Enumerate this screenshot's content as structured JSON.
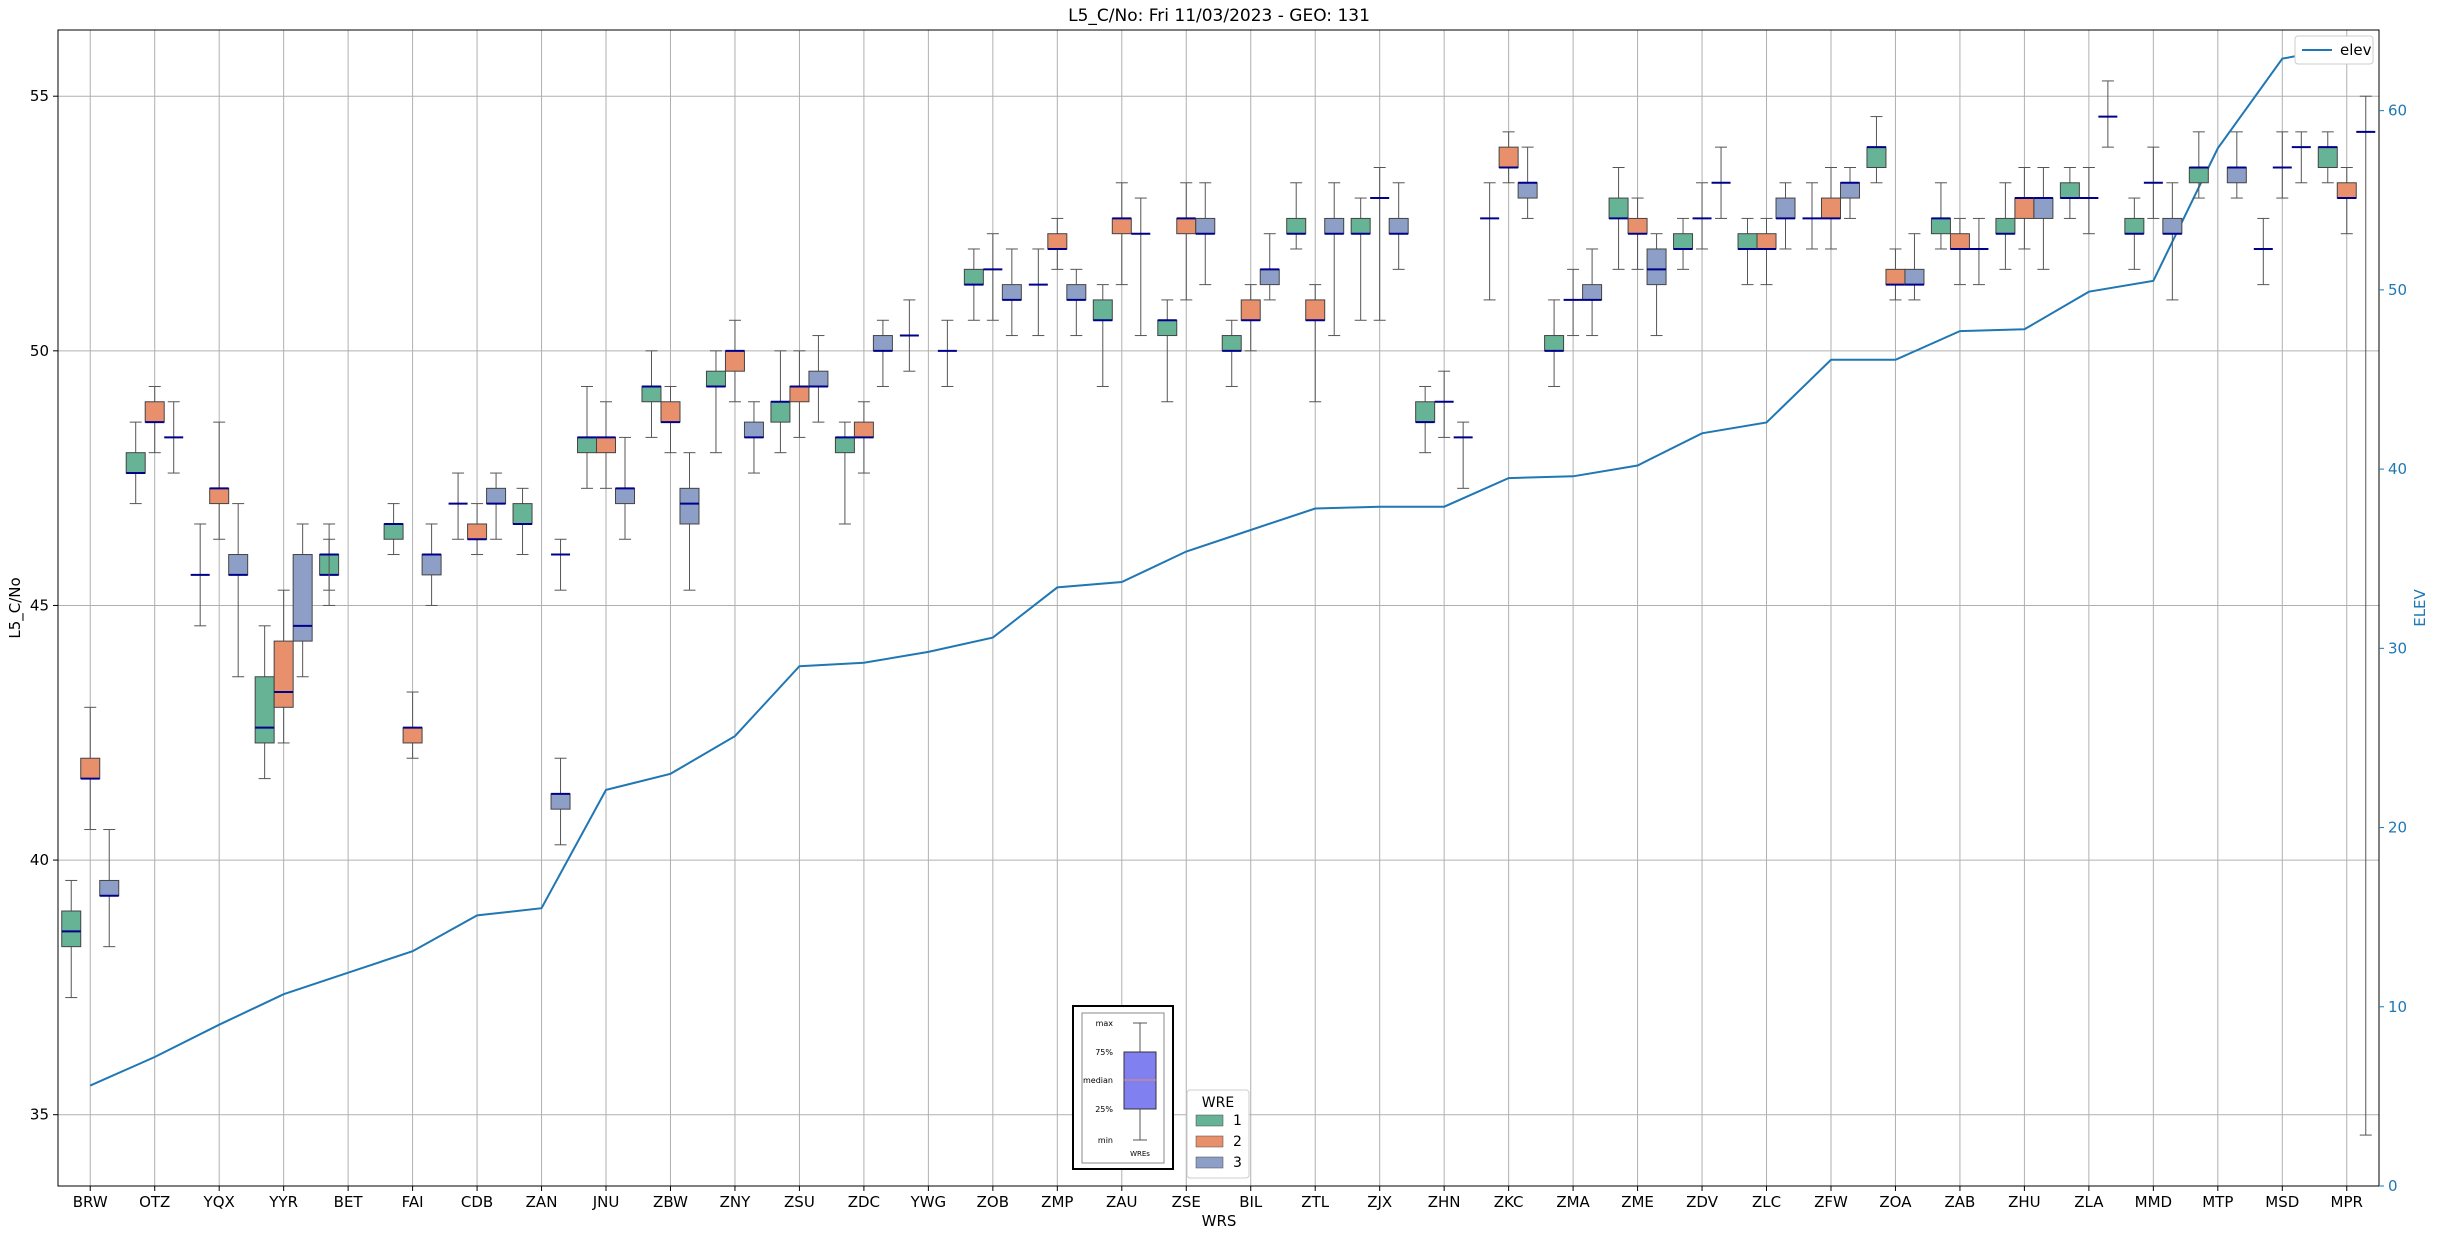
{
  "chart_data": {
    "type": "box",
    "title": "L5_C/No: Fri 11/03/2023 - GEO: 131",
    "xlabel": "WRS",
    "ylabel": "L5_C/No",
    "y2label": "ELEV",
    "ylim": [
      33.6,
      56.3
    ],
    "y2lim": [
      0,
      64.5
    ],
    "yticks": [
      35,
      40,
      45,
      50,
      55
    ],
    "y2ticks": [
      0,
      10,
      20,
      30,
      40,
      50,
      60
    ],
    "grid": true,
    "categories": [
      "BRW",
      "OTZ",
      "YQX",
      "YYR",
      "BET",
      "FAI",
      "CDB",
      "ZAN",
      "JNU",
      "ZBW",
      "ZNY",
      "ZSU",
      "ZDC",
      "YWG",
      "ZOB",
      "ZMP",
      "ZAU",
      "ZSE",
      "BIL",
      "ZTL",
      "ZJX",
      "ZHN",
      "ZKC",
      "ZMA",
      "ZME",
      "ZDV",
      "ZLC",
      "ZFW",
      "ZOA",
      "ZAB",
      "ZHU",
      "ZLA",
      "MMD",
      "MTP",
      "MSD",
      "MPR"
    ],
    "legend": {
      "title": "WRE",
      "entries": [
        "1",
        "2",
        "3"
      ],
      "colors": [
        "#66b395",
        "#e8906c",
        "#8d9fc6"
      ],
      "placement": "lower-center"
    },
    "legend2": {
      "entries": [
        "elev"
      ],
      "color": "#1f77b4",
      "placement": "top-right"
    },
    "key_box": {
      "labels": [
        "max",
        "75%",
        "median",
        "25%",
        "min"
      ],
      "xlabel": "WREs"
    },
    "median_color": "#00008b",
    "elev_series": {
      "name": "elev",
      "color": "#1f77b4",
      "values": [
        5.6,
        7.2,
        9.0,
        10.7,
        11.9,
        13.1,
        15.1,
        15.5,
        22.1,
        23.0,
        25.1,
        29.0,
        29.2,
        29.8,
        30.6,
        33.4,
        33.7,
        35.4,
        36.6,
        37.8,
        37.9,
        37.9,
        39.5,
        39.6,
        40.2,
        42.0,
        42.6,
        46.1,
        46.1,
        47.7,
        47.8,
        49.9,
        50.5,
        57.9,
        62.9,
        63.6
      ]
    },
    "series": [
      {
        "name": "1",
        "boxes": [
          {
            "cat": 0,
            "min": 37.3,
            "q1": 38.3,
            "median": 38.6,
            "q3": 39.0,
            "max": 39.6
          },
          {
            "cat": 1,
            "min": 47.0,
            "q1": 47.6,
            "median": 47.6,
            "q3": 48.0,
            "max": 48.6
          },
          {
            "cat": 3,
            "min": 41.6,
            "q1": 42.3,
            "median": 42.6,
            "q3": 43.6,
            "max": 44.6
          },
          {
            "cat": 4,
            "min": 45.0,
            "q1": 45.6,
            "median": 45.6,
            "q3": 46.0,
            "max": 46.3
          },
          {
            "cat": 5,
            "min": 46.0,
            "q1": 46.3,
            "median": 46.6,
            "q3": 46.6,
            "max": 47.0
          },
          {
            "cat": 7,
            "min": 46.0,
            "q1": 46.6,
            "median": 46.6,
            "q3": 47.0,
            "max": 47.3
          },
          {
            "cat": 8,
            "min": 47.3,
            "q1": 48.0,
            "median": 48.3,
            "q3": 48.3,
            "max": 49.3
          },
          {
            "cat": 9,
            "min": 48.3,
            "q1": 49.0,
            "median": 49.3,
            "q3": 49.3,
            "max": 50.0
          },
          {
            "cat": 10,
            "min": 48.0,
            "q1": 49.3,
            "median": 49.3,
            "q3": 49.6,
            "max": 50.0
          },
          {
            "cat": 11,
            "min": 48.0,
            "q1": 48.6,
            "median": 49.0,
            "q3": 49.0,
            "max": 50.0
          },
          {
            "cat": 12,
            "min": 46.6,
            "q1": 48.0,
            "median": 48.3,
            "q3": 48.3,
            "max": 48.6
          },
          {
            "cat": 14,
            "min": 50.6,
            "q1": 51.3,
            "median": 51.3,
            "q3": 51.6,
            "max": 52.0
          },
          {
            "cat": 16,
            "min": 49.3,
            "q1": 50.6,
            "median": 50.6,
            "q3": 51.0,
            "max": 51.3
          },
          {
            "cat": 17,
            "min": 49.0,
            "q1": 50.3,
            "median": 50.6,
            "q3": 50.6,
            "max": 51.0
          },
          {
            "cat": 18,
            "min": 49.3,
            "q1": 50.0,
            "median": 50.0,
            "q3": 50.3,
            "max": 50.6
          },
          {
            "cat": 19,
            "min": 52.0,
            "q1": 52.3,
            "median": 52.3,
            "q3": 52.6,
            "max": 53.3
          },
          {
            "cat": 20,
            "min": 50.6,
            "q1": 52.3,
            "median": 52.3,
            "q3": 52.6,
            "max": 53.0
          },
          {
            "cat": 21,
            "min": 48.0,
            "q1": 48.6,
            "median": 48.6,
            "q3": 49.0,
            "max": 49.3
          },
          {
            "cat": 23,
            "min": 49.3,
            "q1": 50.0,
            "median": 50.0,
            "q3": 50.3,
            "max": 51.0
          },
          {
            "cat": 24,
            "min": 51.6,
            "q1": 52.6,
            "median": 52.6,
            "q3": 53.0,
            "max": 53.6
          },
          {
            "cat": 25,
            "min": 51.6,
            "q1": 52.0,
            "median": 52.0,
            "q3": 52.3,
            "max": 52.6
          },
          {
            "cat": 26,
            "min": 51.3,
            "q1": 52.0,
            "median": 52.0,
            "q3": 52.3,
            "max": 52.6
          },
          {
            "cat": 28,
            "min": 53.3,
            "q1": 53.6,
            "median": 54.0,
            "q3": 54.0,
            "max": 54.6
          },
          {
            "cat": 29,
            "min": 52.0,
            "q1": 52.3,
            "median": 52.6,
            "q3": 52.6,
            "max": 53.3
          },
          {
            "cat": 30,
            "min": 51.6,
            "q1": 52.3,
            "median": 52.3,
            "q3": 52.6,
            "max": 53.3
          },
          {
            "cat": 31,
            "min": 52.6,
            "q1": 53.0,
            "median": 53.0,
            "q3": 53.3,
            "max": 53.6
          },
          {
            "cat": 32,
            "min": 51.6,
            "q1": 52.3,
            "median": 52.3,
            "q3": 52.6,
            "max": 53.0
          },
          {
            "cat": 33,
            "min": 53.0,
            "q1": 53.3,
            "median": 53.6,
            "q3": 53.6,
            "max": 54.3
          },
          {
            "cat": 35,
            "min": 53.3,
            "q1": 53.6,
            "median": 54.0,
            "q3": 54.0,
            "max": 54.3
          }
        ]
      },
      {
        "name": "2",
        "boxes": [
          {
            "cat": 0,
            "min": 40.6,
            "q1": 41.6,
            "median": 41.6,
            "q3": 42.0,
            "max": 43.0
          },
          {
            "cat": 1,
            "min": 48.0,
            "q1": 48.6,
            "median": 48.6,
            "q3": 49.0,
            "max": 49.3
          },
          {
            "cat": 2,
            "min": 46.3,
            "q1": 47.0,
            "median": 47.3,
            "q3": 47.3,
            "max": 48.6
          },
          {
            "cat": 3,
            "min": 42.3,
            "q1": 43.0,
            "median": 43.3,
            "q3": 44.3,
            "max": 45.3
          },
          {
            "cat": 5,
            "min": 42.0,
            "q1": 42.3,
            "median": 42.6,
            "q3": 42.6,
            "max": 43.3
          },
          {
            "cat": 6,
            "min": 46.0,
            "q1": 46.3,
            "median": 46.3,
            "q3": 46.6,
            "max": 47.0
          },
          {
            "cat": 8,
            "min": 47.3,
            "q1": 48.0,
            "median": 48.3,
            "q3": 48.3,
            "max": 49.0
          },
          {
            "cat": 9,
            "min": 48.0,
            "q1": 48.6,
            "median": 48.6,
            "q3": 49.0,
            "max": 49.3
          },
          {
            "cat": 10,
            "min": 49.0,
            "q1": 49.6,
            "median": 50.0,
            "q3": 50.0,
            "max": 50.6
          },
          {
            "cat": 11,
            "min": 48.3,
            "q1": 49.0,
            "median": 49.3,
            "q3": 49.3,
            "max": 50.0
          },
          {
            "cat": 12,
            "min": 47.6,
            "q1": 48.3,
            "median": 48.3,
            "q3": 48.6,
            "max": 49.0
          },
          {
            "cat": 15,
            "min": 51.6,
            "q1": 52.0,
            "median": 52.0,
            "q3": 52.3,
            "max": 52.6
          },
          {
            "cat": 16,
            "min": 51.3,
            "q1": 52.3,
            "median": 52.6,
            "q3": 52.6,
            "max": 53.3
          },
          {
            "cat": 17,
            "min": 51.0,
            "q1": 52.3,
            "median": 52.6,
            "q3": 52.6,
            "max": 53.3
          },
          {
            "cat": 18,
            "min": 50.0,
            "q1": 50.6,
            "median": 50.6,
            "q3": 51.0,
            "max": 51.3
          },
          {
            "cat": 19,
            "min": 49.0,
            "q1": 50.6,
            "median": 50.6,
            "q3": 51.0,
            "max": 51.3
          },
          {
            "cat": 22,
            "min": 53.3,
            "q1": 53.6,
            "median": 53.6,
            "q3": 54.0,
            "max": 54.3
          },
          {
            "cat": 24,
            "min": 51.6,
            "q1": 52.3,
            "median": 52.3,
            "q3": 52.6,
            "max": 53.0
          },
          {
            "cat": 26,
            "min": 51.3,
            "q1": 52.0,
            "median": 52.0,
            "q3": 52.3,
            "max": 52.6
          },
          {
            "cat": 27,
            "min": 52.0,
            "q1": 52.6,
            "median": 52.6,
            "q3": 53.0,
            "max": 53.6
          },
          {
            "cat": 28,
            "min": 51.0,
            "q1": 51.3,
            "median": 51.3,
            "q3": 51.6,
            "max": 52.0
          },
          {
            "cat": 29,
            "min": 51.3,
            "q1": 52.0,
            "median": 52.0,
            "q3": 52.3,
            "max": 52.6
          },
          {
            "cat": 30,
            "min": 52.0,
            "q1": 52.6,
            "median": 53.0,
            "q3": 53.0,
            "max": 53.6
          },
          {
            "cat": 35,
            "min": 52.3,
            "q1": 53.0,
            "median": 53.0,
            "q3": 53.3,
            "max": 53.6
          }
        ]
      },
      {
        "name": "3",
        "boxes": [
          {
            "cat": 0,
            "min": 38.3,
            "q1": 39.3,
            "median": 39.3,
            "q3": 39.6,
            "max": 40.6
          },
          {
            "cat": 2,
            "min": 43.6,
            "q1": 45.6,
            "median": 45.6,
            "q3": 46.0,
            "max": 47.0
          },
          {
            "cat": 3,
            "min": 43.6,
            "q1": 44.3,
            "median": 44.6,
            "q3": 46.0,
            "max": 46.6
          },
          {
            "cat": 5,
            "min": 45.0,
            "q1": 45.6,
            "median": 46.0,
            "q3": 46.0,
            "max": 46.6
          },
          {
            "cat": 6,
            "min": 46.3,
            "q1": 47.0,
            "median": 47.0,
            "q3": 47.3,
            "max": 47.6
          },
          {
            "cat": 7,
            "min": 40.3,
            "q1": 41.0,
            "median": 41.3,
            "q3": 41.3,
            "max": 42.0
          },
          {
            "cat": 8,
            "min": 46.3,
            "q1": 47.0,
            "median": 47.3,
            "q3": 47.3,
            "max": 48.3
          },
          {
            "cat": 9,
            "min": 45.3,
            "q1": 46.6,
            "median": 47.0,
            "q3": 47.3,
            "max": 48.0
          },
          {
            "cat": 10,
            "min": 47.6,
            "q1": 48.3,
            "median": 48.3,
            "q3": 48.6,
            "max": 49.0
          },
          {
            "cat": 11,
            "min": 48.6,
            "q1": 49.3,
            "median": 49.3,
            "q3": 49.6,
            "max": 50.3
          },
          {
            "cat": 12,
            "min": 49.3,
            "q1": 50.0,
            "median": 50.0,
            "q3": 50.3,
            "max": 50.6
          },
          {
            "cat": 14,
            "min": 50.3,
            "q1": 51.0,
            "median": 51.0,
            "q3": 51.3,
            "max": 52.0
          },
          {
            "cat": 15,
            "min": 50.3,
            "q1": 51.0,
            "median": 51.0,
            "q3": 51.3,
            "max": 51.6
          },
          {
            "cat": 17,
            "min": 51.3,
            "q1": 52.3,
            "median": 52.3,
            "q3": 52.6,
            "max": 53.3
          },
          {
            "cat": 18,
            "min": 51.0,
            "q1": 51.3,
            "median": 51.6,
            "q3": 51.6,
            "max": 52.3
          },
          {
            "cat": 19,
            "min": 50.3,
            "q1": 52.3,
            "median": 52.3,
            "q3": 52.6,
            "max": 53.3
          },
          {
            "cat": 20,
            "min": 51.6,
            "q1": 52.3,
            "median": 52.3,
            "q3": 52.6,
            "max": 53.3
          },
          {
            "cat": 22,
            "min": 52.6,
            "q1": 53.0,
            "median": 53.3,
            "q3": 53.3,
            "max": 54.0
          },
          {
            "cat": 23,
            "min": 50.3,
            "q1": 51.0,
            "median": 51.0,
            "q3": 51.3,
            "max": 52.0
          },
          {
            "cat": 24,
            "min": 50.3,
            "q1": 51.3,
            "median": 51.6,
            "q3": 52.0,
            "max": 52.3
          },
          {
            "cat": 26,
            "min": 52.0,
            "q1": 52.6,
            "median": 52.6,
            "q3": 53.0,
            "max": 53.3
          },
          {
            "cat": 27,
            "min": 52.6,
            "q1": 53.0,
            "median": 53.3,
            "q3": 53.3,
            "max": 53.6
          },
          {
            "cat": 28,
            "min": 51.0,
            "q1": 51.3,
            "median": 51.3,
            "q3": 51.6,
            "max": 52.3
          },
          {
            "cat": 30,
            "min": 51.6,
            "q1": 52.6,
            "median": 53.0,
            "q3": 53.0,
            "max": 53.6
          },
          {
            "cat": 32,
            "min": 51.0,
            "q1": 52.3,
            "median": 52.3,
            "q3": 52.6,
            "max": 53.3
          },
          {
            "cat": 33,
            "min": 53.0,
            "q1": 53.3,
            "median": 53.6,
            "q3": 53.6,
            "max": 54.3
          }
        ]
      }
    ],
    "single_medians": [
      {
        "cat": 1,
        "pos": 2,
        "min": 47.6,
        "median": 48.3,
        "max": 49.0
      },
      {
        "cat": 2,
        "pos": 0,
        "min": 44.6,
        "median": 45.6,
        "max": 46.6
      },
      {
        "cat": 4,
        "pos": 0,
        "min": 45.3,
        "median": 46.0,
        "max": 46.6
      },
      {
        "cat": 6,
        "pos": 0,
        "min": 46.3,
        "median": 47.0,
        "max": 47.6
      },
      {
        "cat": 7,
        "pos": 2,
        "min": 45.3,
        "median": 46.0,
        "max": 46.3
      },
      {
        "cat": 13,
        "pos": 0,
        "min": 49.6,
        "median": 50.3,
        "max": 51.0
      },
      {
        "cat": 13,
        "pos": 2,
        "min": 49.3,
        "median": 50.0,
        "max": 50.6
      },
      {
        "cat": 14,
        "pos": 1,
        "min": 50.6,
        "median": 51.6,
        "max": 52.3
      },
      {
        "cat": 15,
        "pos": 0,
        "min": 50.3,
        "median": 51.3,
        "max": 52.0
      },
      {
        "cat": 16,
        "pos": 2,
        "min": 50.3,
        "median": 52.3,
        "max": 53.0
      },
      {
        "cat": 20,
        "pos": 1,
        "min": 50.6,
        "median": 53.0,
        "max": 53.6
      },
      {
        "cat": 21,
        "pos": 1,
        "min": 48.3,
        "median": 49.0,
        "max": 49.6
      },
      {
        "cat": 21,
        "pos": 2,
        "min": 47.3,
        "median": 48.3,
        "max": 48.6
      },
      {
        "cat": 22,
        "pos": 0,
        "min": 51.0,
        "median": 52.6,
        "max": 53.3
      },
      {
        "cat": 23,
        "pos": 1,
        "min": 50.3,
        "median": 51.0,
        "max": 51.6
      },
      {
        "cat": 25,
        "pos": 1,
        "min": 52.0,
        "median": 52.6,
        "max": 53.3
      },
      {
        "cat": 25,
        "pos": 2,
        "min": 52.6,
        "median": 53.3,
        "max": 54.0
      },
      {
        "cat": 27,
        "pos": 0,
        "min": 52.0,
        "median": 52.6,
        "max": 53.3
      },
      {
        "cat": 29,
        "pos": 2,
        "min": 51.3,
        "median": 52.0,
        "max": 52.6
      },
      {
        "cat": 31,
        "pos": 1,
        "min": 52.3,
        "median": 53.0,
        "max": 53.6
      },
      {
        "cat": 31,
        "pos": 2,
        "min": 54.0,
        "median": 54.6,
        "max": 55.3
      },
      {
        "cat": 32,
        "pos": 1,
        "min": 52.6,
        "median": 53.3,
        "max": 54.0
      },
      {
        "cat": 34,
        "pos": 0,
        "min": 51.3,
        "median": 52.0,
        "max": 52.6
      },
      {
        "cat": 34,
        "pos": 1,
        "min": 53.0,
        "median": 53.6,
        "max": 54.3
      },
      {
        "cat": 34,
        "pos": 2,
        "min": 53.3,
        "median": 54.0,
        "max": 54.3
      },
      {
        "cat": 35,
        "pos": 2,
        "min": 34.6,
        "median": 54.3,
        "max": 55.0
      }
    ]
  }
}
